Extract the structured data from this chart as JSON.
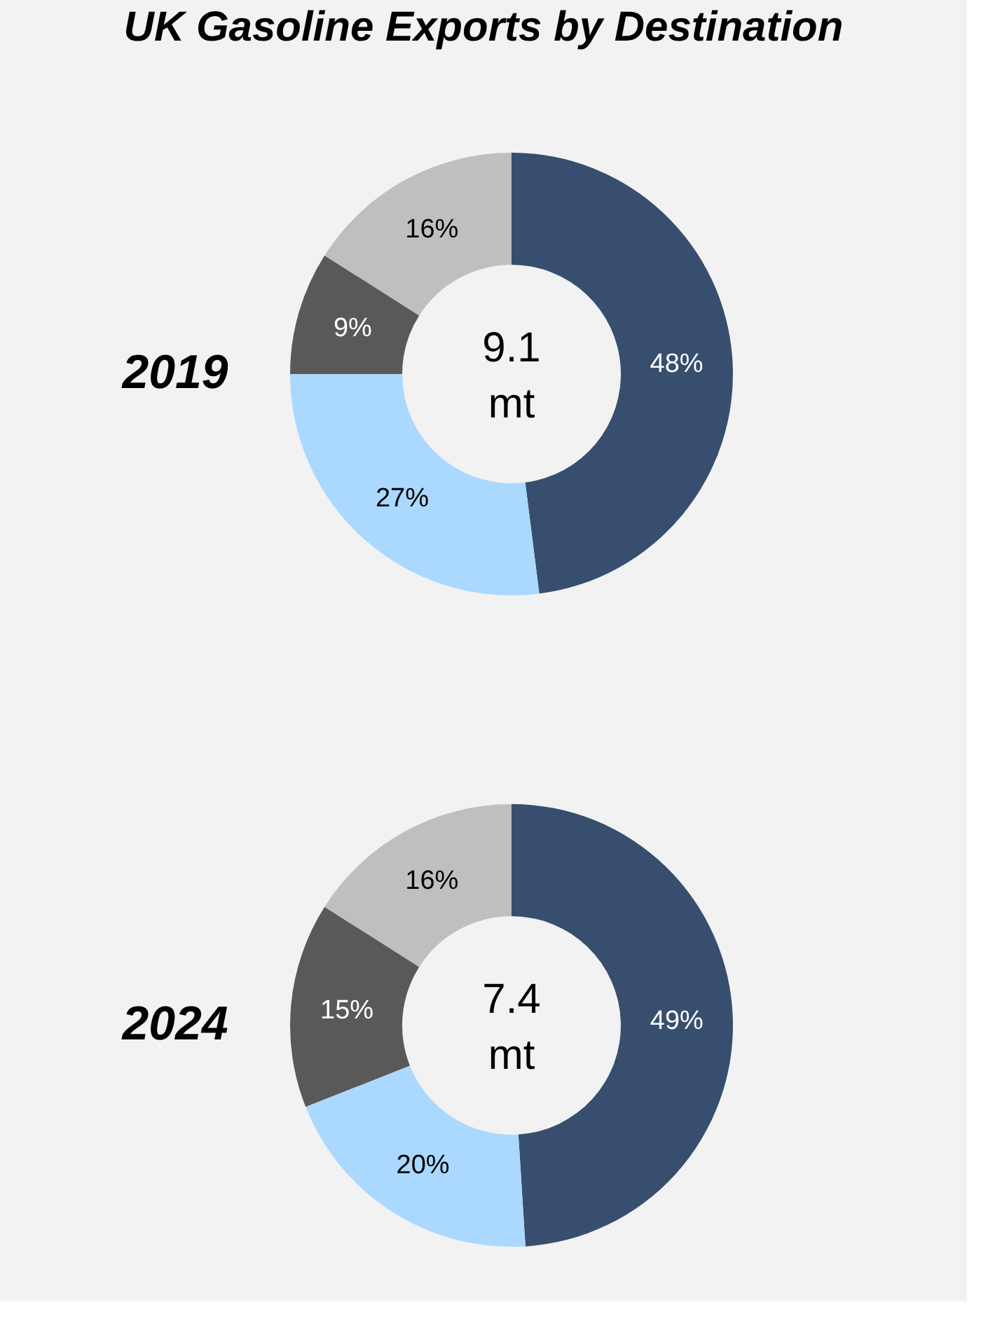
{
  "chart_data": [
    {
      "type": "donut",
      "title": "UK Gasoline Exports by Destination",
      "ylabel": "2019",
      "annotations": [
        "9.1 mt"
      ],
      "categories": [
        null,
        null,
        null,
        null
      ],
      "values": [
        48,
        27,
        9,
        16
      ],
      "colors": [
        "#374e6e",
        "#aad8ff",
        "#595959",
        "#bfbfbf"
      ],
      "value_labels": [
        "48%",
        "27%",
        "9%",
        "16%"
      ],
      "legend": false
    },
    {
      "type": "donut",
      "ylabel": "2024",
      "annotations": [
        "7.4 mt"
      ],
      "categories": [
        null,
        null,
        null,
        null
      ],
      "values": [
        49,
        20,
        15,
        16
      ],
      "colors": [
        "#374e6e",
        "#aad8ff",
        "#595959",
        "#bfbfbf"
      ],
      "value_labels": [
        "49%",
        "20%",
        "15%",
        "16%"
      ],
      "legend": false
    }
  ]
}
